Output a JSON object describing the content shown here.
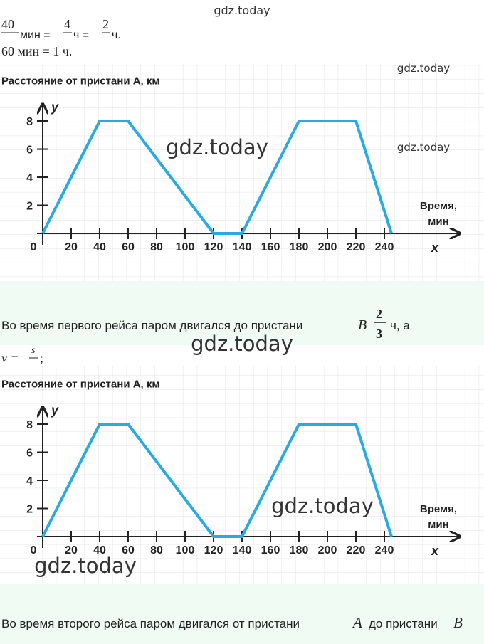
{
  "formula1": {
    "num1": "40",
    "unit1": "мин =",
    "num2": "4",
    "unit2": "ч =",
    "num3": "2",
    "unit3": "ч."
  },
  "formula2": "60 мин = 1 ч.",
  "paragraph1": {
    "text": "Во время первого рейса паром двигался до пристани",
    "var": "B",
    "frac_num": "2",
    "frac_den": "3",
    "tail": "ч, а"
  },
  "formula3": {
    "lhs": "v =",
    "num": "s",
    "end": ";"
  },
  "paragraph2": {
    "text1": "Во время второго рейса паром двигался от пристани",
    "var1": "A",
    "text2": "до пристани",
    "var2": "B"
  },
  "chart_data": [
    {
      "type": "line",
      "y_axis_title": "Расстояние от пристани А, км",
      "y_label": "y",
      "x_axis_title": [
        "Время,",
        "мин"
      ],
      "x_label": "x",
      "x": [
        0,
        40,
        60,
        120,
        140,
        180,
        220,
        245
      ],
      "series": [
        {
          "color": "#29abe2",
          "values": [
            0,
            8,
            8,
            0,
            0,
            8,
            8,
            0
          ]
        }
      ],
      "xlim": [
        0,
        292
      ],
      "ylim": [
        0,
        9
      ],
      "xticks": [
        0,
        20,
        40,
        60,
        80,
        100,
        120,
        140,
        160,
        180,
        200,
        220,
        240
      ],
      "yticks": [
        2,
        4,
        6,
        8
      ]
    },
    {
      "type": "line",
      "y_axis_title": "Расстояние от пристани А, км",
      "y_label": "y",
      "x_axis_title": [
        "Время,",
        "мин"
      ],
      "x_label": "x",
      "x": [
        0,
        40,
        60,
        120,
        140,
        180,
        220,
        245
      ],
      "series": [
        {
          "color": "#29abe2",
          "values": [
            0,
            8,
            8,
            0,
            0,
            8,
            8,
            0
          ]
        }
      ],
      "xlim": [
        0,
        292
      ],
      "ylim": [
        0,
        9
      ],
      "xticks": [
        0,
        20,
        40,
        60,
        80,
        100,
        120,
        140,
        160,
        180,
        200,
        220,
        240
      ],
      "yticks": [
        2,
        4,
        6,
        8
      ]
    }
  ],
  "watermarks": [
    "gdz.today",
    "gdz.today",
    "gdz.today",
    "gdz.today",
    "gdz.today",
    "gdz.today",
    "gdz.today"
  ]
}
